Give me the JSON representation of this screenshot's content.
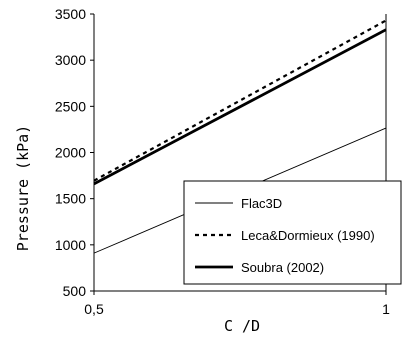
{
  "chart_data": {
    "type": "line",
    "xlabel": "C /D",
    "ylabel": "Pressure (kPa)",
    "xlim": [
      0.5,
      1
    ],
    "ylim": [
      500,
      3500
    ],
    "x_ticks": [
      "0,5",
      "1"
    ],
    "y_ticks": [
      "500",
      "1000",
      "1500",
      "2000",
      "2500",
      "3000",
      "3500"
    ],
    "grid": false,
    "legend_position": "bottom-right",
    "series": [
      {
        "name": "Flac3D",
        "style": "thin-solid",
        "x": [
          0.5,
          1
        ],
        "y": [
          910,
          2265
        ]
      },
      {
        "name": "Leca&Dormieux (1990)",
        "style": "dotted",
        "x": [
          0.5,
          1
        ],
        "y": [
          1695,
          3430
        ]
      },
      {
        "name": "Soubra (2002)",
        "style": "thick-solid",
        "x": [
          0.5,
          1
        ],
        "y": [
          1660,
          3330
        ]
      }
    ]
  }
}
